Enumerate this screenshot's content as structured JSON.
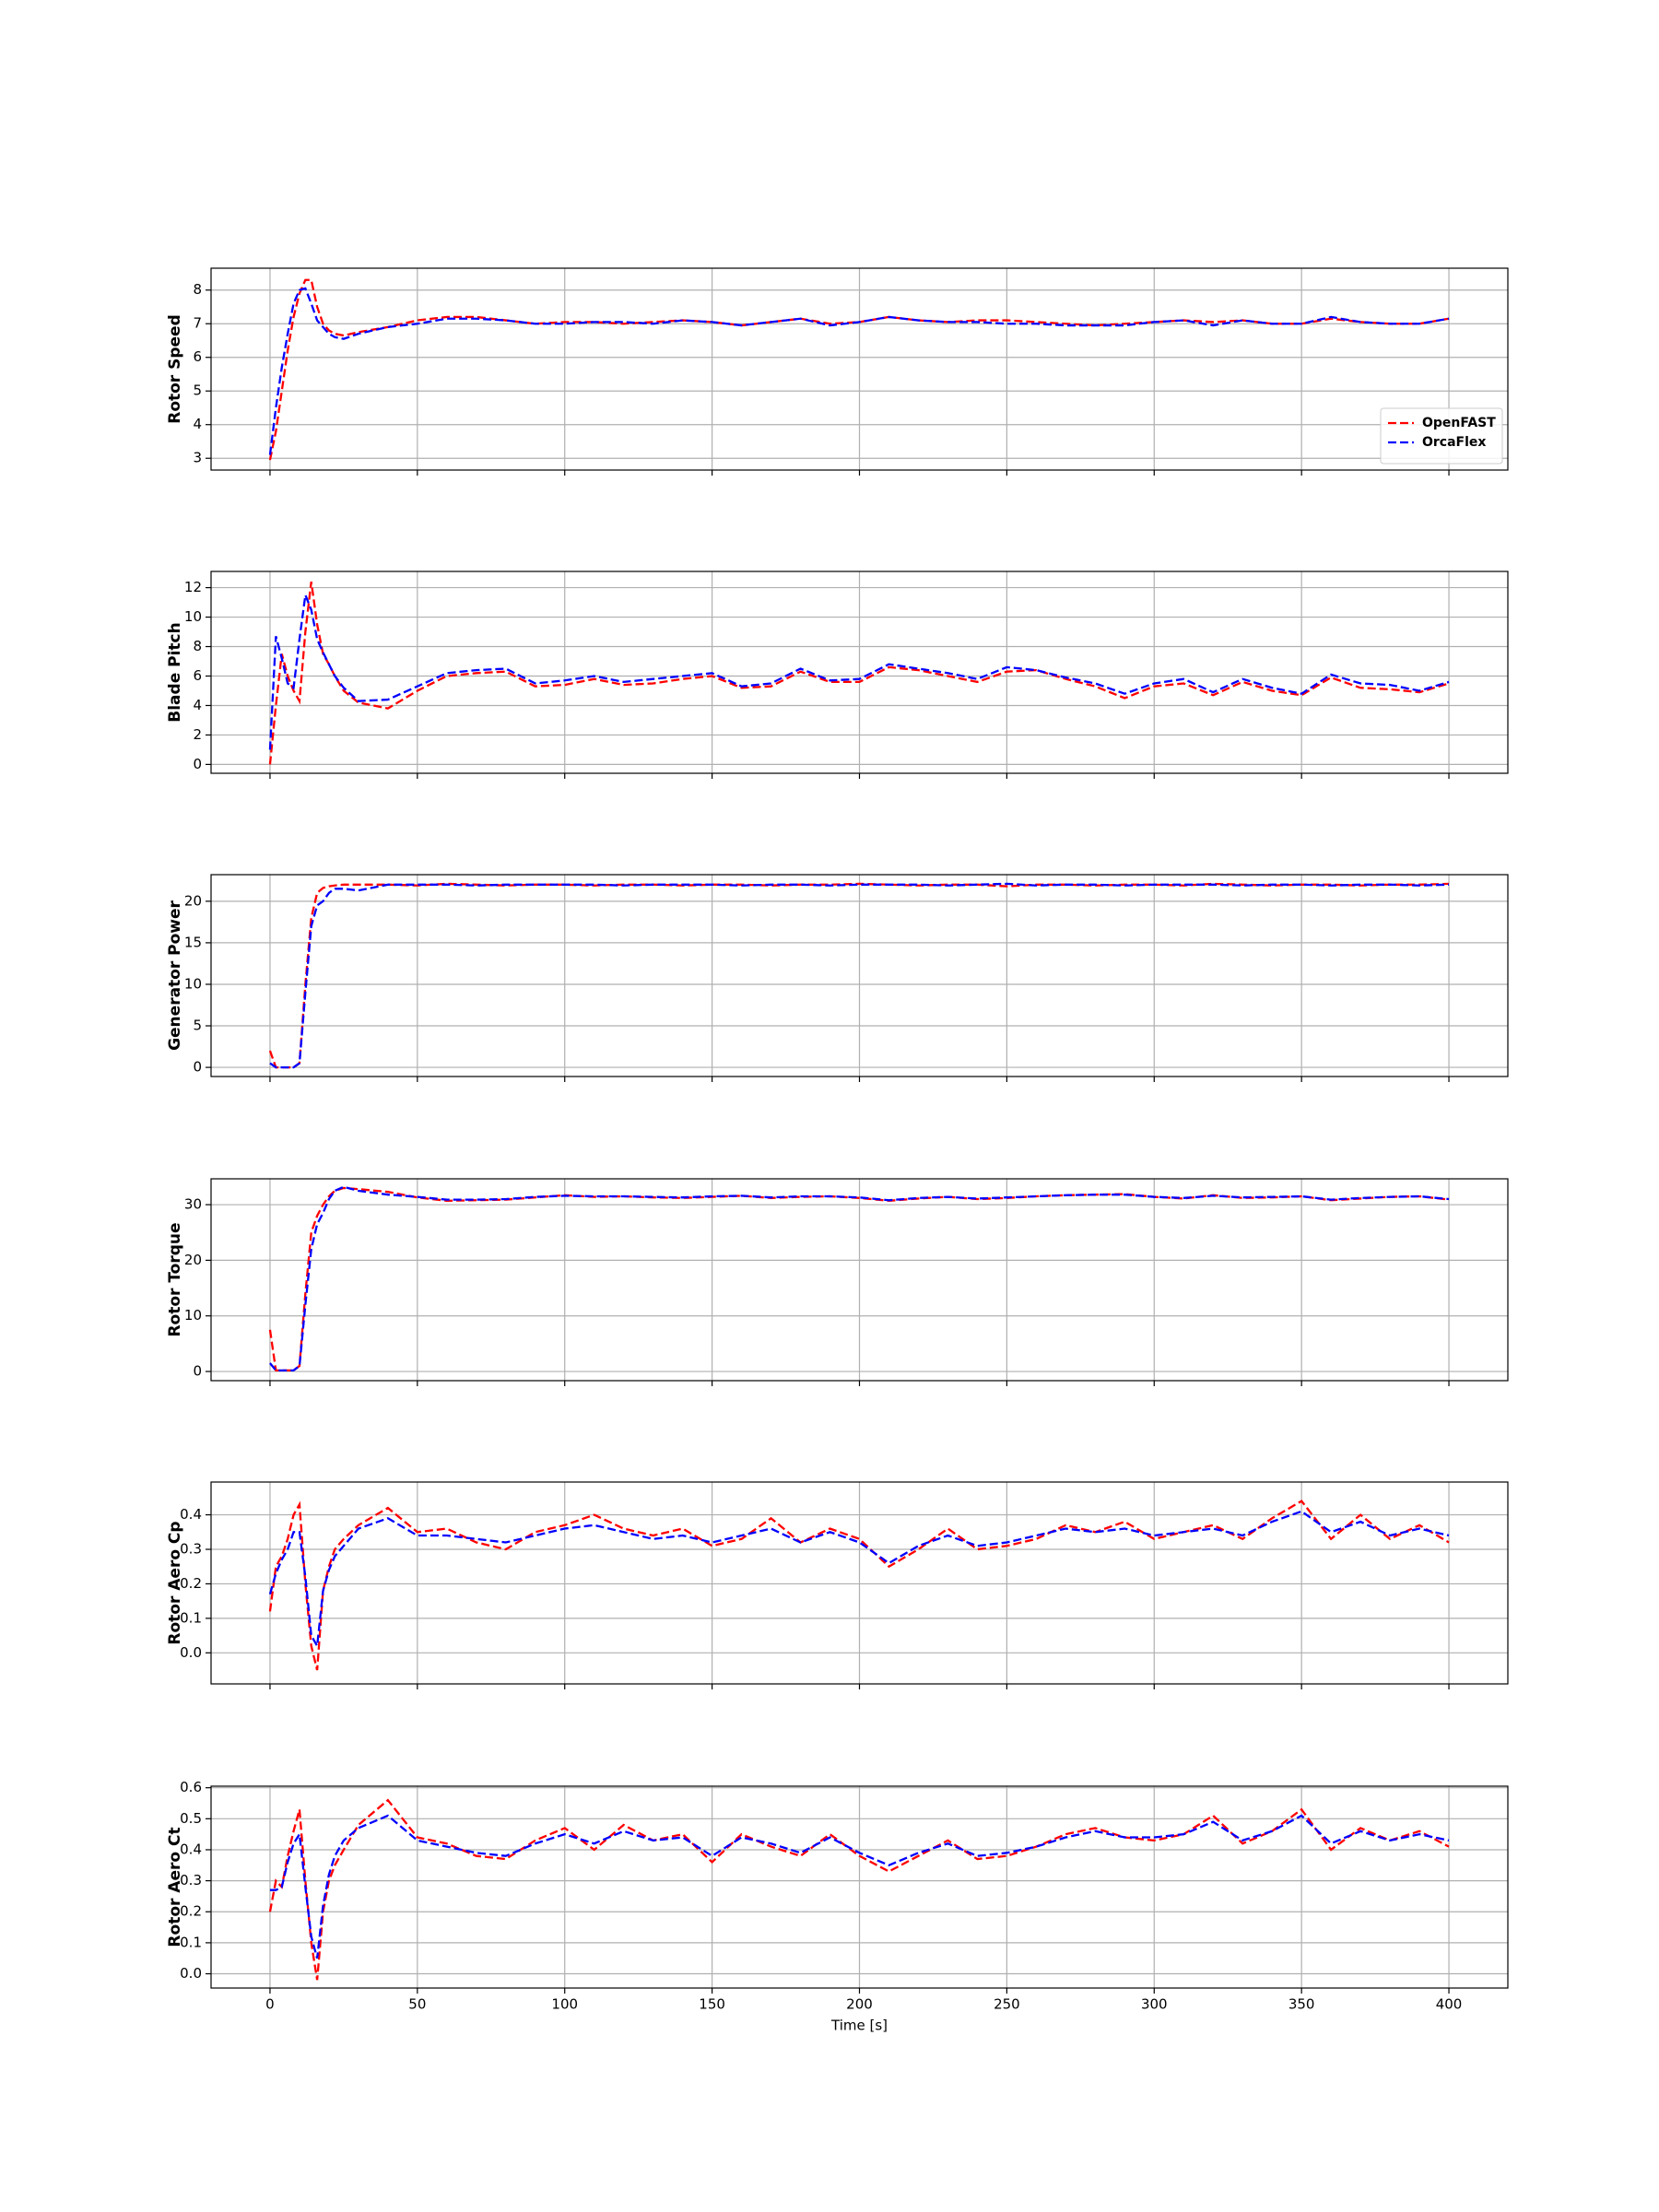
{
  "chart_data": [
    {
      "type": "line",
      "ylabel": "Rotor Speed",
      "grid": true,
      "legend": "lower right",
      "x": [
        0,
        2,
        4,
        6,
        8,
        10,
        12,
        14,
        16,
        18,
        20,
        22,
        25,
        30,
        40,
        50,
        60,
        70,
        80,
        90,
        100,
        110,
        120,
        130,
        140,
        150,
        160,
        170,
        180,
        190,
        200,
        210,
        220,
        230,
        240,
        250,
        260,
        270,
        280,
        290,
        300,
        310,
        320,
        330,
        340,
        350,
        360,
        370,
        380,
        390,
        400
      ],
      "xlim": [
        -20,
        420
      ],
      "xticks": [
        0,
        50,
        100,
        150,
        200,
        250,
        300,
        350,
        400
      ],
      "ylim": [
        2.65,
        8.65
      ],
      "yticks": [
        3,
        4,
        5,
        6,
        7,
        8
      ],
      "series": [
        {
          "name": "OpenFAST",
          "color": "#ff0000",
          "values": [
            2.95,
            3.8,
            5.0,
            6.2,
            7.2,
            7.9,
            8.3,
            8.3,
            7.5,
            7.0,
            6.8,
            6.7,
            6.65,
            6.75,
            6.9,
            7.1,
            7.2,
            7.2,
            7.1,
            7.0,
            7.05,
            7.05,
            7.0,
            7.05,
            7.1,
            7.05,
            6.95,
            7.05,
            7.15,
            7.0,
            7.05,
            7.2,
            7.1,
            7.05,
            7.1,
            7.1,
            7.05,
            7.0,
            6.95,
            7.0,
            7.05,
            7.1,
            7.05,
            7.1,
            7.0,
            7.0,
            7.15,
            7.05,
            7.0,
            7.0,
            7.15
          ]
        },
        {
          "name": "OrcaFlex",
          "color": "#0000ff",
          "values": [
            3.1,
            4.5,
            5.7,
            6.7,
            7.6,
            8.0,
            8.05,
            7.6,
            7.1,
            6.9,
            6.7,
            6.6,
            6.55,
            6.7,
            6.9,
            7.0,
            7.15,
            7.15,
            7.1,
            7.0,
            7.0,
            7.05,
            7.05,
            7.0,
            7.1,
            7.05,
            6.95,
            7.05,
            7.15,
            6.95,
            7.05,
            7.2,
            7.1,
            7.05,
            7.05,
            7.0,
            7.0,
            6.95,
            6.95,
            6.95,
            7.05,
            7.1,
            6.95,
            7.1,
            7.0,
            7.0,
            7.2,
            7.05,
            7.0,
            7.0,
            7.15
          ]
        }
      ]
    },
    {
      "type": "line",
      "ylabel": "Blade Pitch",
      "grid": true,
      "x": [
        0,
        2,
        4,
        6,
        8,
        10,
        12,
        14,
        16,
        18,
        20,
        22,
        25,
        30,
        40,
        50,
        60,
        70,
        80,
        90,
        100,
        110,
        120,
        130,
        140,
        150,
        160,
        170,
        180,
        190,
        200,
        210,
        220,
        230,
        240,
        250,
        260,
        270,
        280,
        290,
        300,
        310,
        320,
        330,
        340,
        350,
        360,
        370,
        380,
        390,
        400
      ],
      "xlim": [
        -20,
        420
      ],
      "xticks": [
        0,
        50,
        100,
        150,
        200,
        250,
        300,
        350,
        400
      ],
      "ylim": [
        -0.6,
        13.1
      ],
      "yticks": [
        0,
        2,
        4,
        6,
        8,
        10,
        12
      ],
      "series": [
        {
          "color": "#ff0000",
          "values": [
            0,
            4,
            7.5,
            6,
            5,
            4.3,
            9,
            12.4,
            9.5,
            7.5,
            6.8,
            6,
            5,
            4.2,
            3.8,
            5,
            6,
            6.2,
            6.3,
            5.3,
            5.4,
            5.8,
            5.4,
            5.5,
            5.8,
            6,
            5.2,
            5.3,
            6.3,
            5.6,
            5.6,
            6.6,
            6.4,
            6,
            5.6,
            6.3,
            6.4,
            5.8,
            5.3,
            4.5,
            5.3,
            5.5,
            4.7,
            5.6,
            5,
            4.7,
            5.9,
            5.2,
            5.1,
            4.9,
            5.5
          ]
        },
        {
          "color": "#0000ff",
          "values": [
            1,
            8.7,
            7.2,
            5.5,
            5.2,
            8.5,
            11.5,
            10.5,
            8.5,
            7.6,
            6.8,
            6,
            5.2,
            4.3,
            4.4,
            5.3,
            6.2,
            6.4,
            6.5,
            5.5,
            5.7,
            6,
            5.6,
            5.8,
            6,
            6.2,
            5.3,
            5.5,
            6.5,
            5.7,
            5.8,
            6.8,
            6.5,
            6.2,
            5.8,
            6.6,
            6.4,
            5.9,
            5.5,
            4.8,
            5.5,
            5.8,
            4.9,
            5.8,
            5.2,
            4.8,
            6.1,
            5.5,
            5.4,
            5,
            5.6
          ]
        }
      ]
    },
    {
      "type": "line",
      "ylabel": "Generator Power",
      "grid": true,
      "x": [
        0,
        2,
        4,
        6,
        8,
        10,
        12,
        14,
        16,
        18,
        20,
        22,
        25,
        30,
        40,
        50,
        60,
        70,
        80,
        90,
        100,
        110,
        120,
        130,
        140,
        150,
        160,
        170,
        180,
        190,
        200,
        210,
        220,
        230,
        240,
        250,
        260,
        270,
        280,
        290,
        300,
        310,
        320,
        330,
        340,
        350,
        360,
        370,
        380,
        390,
        400
      ],
      "xlim": [
        -20,
        420
      ],
      "xticks": [
        0,
        50,
        100,
        150,
        200,
        250,
        300,
        350,
        400
      ],
      "ylim": [
        -1.1,
        23.2
      ],
      "yticks": [
        0,
        5,
        10,
        15,
        20
      ],
      "series": [
        {
          "color": "#ff0000",
          "values": [
            2,
            0,
            0,
            0,
            0,
            0.5,
            10,
            18,
            21,
            21.6,
            21.8,
            21.9,
            22,
            22,
            22,
            21.9,
            22.1,
            22,
            21.9,
            22,
            22,
            21.9,
            22,
            22,
            21.9,
            22,
            22,
            21.9,
            22,
            22,
            22.1,
            22,
            21.9,
            22,
            22,
            21.8,
            22,
            22,
            21.9,
            22,
            22,
            21.9,
            22.1,
            22,
            21.9,
            22,
            22,
            21.9,
            22,
            22,
            22.1
          ]
        },
        {
          "color": "#0000ff",
          "values": [
            0.5,
            0,
            0,
            0,
            0,
            0.5,
            9,
            17,
            19.5,
            20,
            21,
            21.5,
            21.5,
            21.3,
            22,
            22,
            22,
            21.9,
            22,
            22,
            22,
            22,
            21.9,
            22,
            22,
            22,
            21.9,
            22,
            22,
            21.9,
            22,
            22,
            22,
            21.9,
            22,
            22.1,
            21.9,
            22,
            22,
            21.9,
            22,
            22,
            22,
            21.9,
            22,
            22,
            21.9,
            22,
            22,
            21.9,
            22
          ]
        }
      ]
    },
    {
      "type": "line",
      "ylabel": "Rotor Torque",
      "grid": true,
      "x": [
        0,
        2,
        4,
        6,
        8,
        10,
        12,
        14,
        16,
        18,
        20,
        22,
        25,
        30,
        40,
        50,
        60,
        70,
        80,
        90,
        100,
        110,
        120,
        130,
        140,
        150,
        160,
        170,
        180,
        190,
        200,
        210,
        220,
        230,
        240,
        250,
        260,
        270,
        280,
        290,
        300,
        310,
        320,
        330,
        340,
        350,
        360,
        370,
        380,
        390,
        400
      ],
      "xlim": [
        -20,
        420
      ],
      "xticks": [
        0,
        50,
        100,
        150,
        200,
        250,
        300,
        350,
        400
      ],
      "ylim": [
        -1.65,
        34.65
      ],
      "yticks": [
        0,
        10,
        20,
        30
      ],
      "series": [
        {
          "color": "#ff0000",
          "values": [
            7.5,
            0.2,
            0.2,
            0.2,
            0.2,
            1,
            14,
            25,
            28,
            30,
            31.5,
            32.5,
            33,
            32.8,
            32.3,
            31.3,
            30.7,
            30.8,
            30.9,
            31.3,
            31.7,
            31.4,
            31.5,
            31.3,
            31.2,
            31.4,
            31.6,
            31.2,
            31.4,
            31.5,
            31.2,
            30.7,
            31.1,
            31.4,
            31,
            31.2,
            31.5,
            31.7,
            31.8,
            31.9,
            31.4,
            31.1,
            31.7,
            31.2,
            31.3,
            31.5,
            30.8,
            31.1,
            31.4,
            31.5,
            30.9
          ]
        },
        {
          "color": "#0000ff",
          "values": [
            1.5,
            0.2,
            0.2,
            0.2,
            0.2,
            1,
            12,
            22,
            26.5,
            28.5,
            31,
            32.5,
            33.2,
            32.5,
            31.8,
            31.4,
            30.9,
            30.9,
            31,
            31.4,
            31.6,
            31.5,
            31.5,
            31.4,
            31.3,
            31.5,
            31.6,
            31.3,
            31.5,
            31.5,
            31.3,
            30.8,
            31.2,
            31.4,
            31.1,
            31.3,
            31.5,
            31.7,
            31.8,
            31.8,
            31.4,
            31.2,
            31.6,
            31.3,
            31.4,
            31.5,
            30.9,
            31.2,
            31.4,
            31.5,
            31
          ]
        }
      ]
    },
    {
      "type": "line",
      "ylabel": "Rotor Aero Cp",
      "grid": true,
      "x": [
        0,
        2,
        4,
        6,
        8,
        10,
        12,
        14,
        16,
        18,
        20,
        22,
        25,
        30,
        40,
        50,
        60,
        70,
        80,
        90,
        100,
        110,
        120,
        130,
        140,
        150,
        160,
        170,
        180,
        190,
        200,
        210,
        220,
        230,
        240,
        250,
        260,
        270,
        280,
        290,
        300,
        310,
        320,
        330,
        340,
        350,
        360,
        370,
        380,
        390,
        400
      ],
      "xlim": [
        -20,
        420
      ],
      "xticks": [
        0,
        50,
        100,
        150,
        200,
        250,
        300,
        350,
        400
      ],
      "ylim": [
        -0.09,
        0.495
      ],
      "yticks": [
        {
          "value": 0,
          "label": "0.0"
        },
        0.1,
        0.2,
        0.3,
        0.4
      ],
      "series": [
        {
          "color": "#ff0000",
          "values": [
            0.12,
            0.25,
            0.28,
            0.33,
            0.4,
            0.43,
            0.2,
            0.02,
            -0.05,
            0.18,
            0.25,
            0.3,
            0.33,
            0.37,
            0.42,
            0.35,
            0.36,
            0.32,
            0.3,
            0.35,
            0.37,
            0.4,
            0.36,
            0.34,
            0.36,
            0.31,
            0.33,
            0.39,
            0.32,
            0.36,
            0.33,
            0.25,
            0.3,
            0.36,
            0.3,
            0.31,
            0.33,
            0.37,
            0.35,
            0.38,
            0.33,
            0.35,
            0.37,
            0.33,
            0.39,
            0.44,
            0.33,
            0.4,
            0.33,
            0.37,
            0.32
          ]
        },
        {
          "color": "#0000ff",
          "values": [
            0.17,
            0.23,
            0.27,
            0.3,
            0.35,
            0.35,
            0.22,
            0.05,
            0.02,
            0.18,
            0.24,
            0.28,
            0.31,
            0.36,
            0.39,
            0.34,
            0.34,
            0.33,
            0.32,
            0.34,
            0.36,
            0.37,
            0.35,
            0.33,
            0.34,
            0.32,
            0.34,
            0.36,
            0.32,
            0.35,
            0.32,
            0.26,
            0.31,
            0.34,
            0.31,
            0.32,
            0.34,
            0.36,
            0.35,
            0.36,
            0.34,
            0.35,
            0.36,
            0.34,
            0.38,
            0.41,
            0.35,
            0.38,
            0.34,
            0.36,
            0.34
          ]
        }
      ]
    },
    {
      "type": "line",
      "ylabel": "Rotor Aero Ct",
      "xlabel": "Time [s]",
      "grid": true,
      "x": [
        0,
        2,
        4,
        6,
        8,
        10,
        12,
        14,
        16,
        18,
        20,
        22,
        25,
        30,
        40,
        50,
        60,
        70,
        80,
        90,
        100,
        110,
        120,
        130,
        140,
        150,
        160,
        170,
        180,
        190,
        200,
        210,
        220,
        230,
        240,
        250,
        260,
        270,
        280,
        290,
        300,
        310,
        320,
        330,
        340,
        350,
        360,
        370,
        380,
        390,
        400
      ],
      "xlim": [
        -20,
        420
      ],
      "xticks": [
        0,
        50,
        100,
        150,
        200,
        250,
        300,
        350,
        400
      ],
      "ylim": [
        -0.046,
        0.605
      ],
      "yticks": [
        {
          "value": 0,
          "label": "0.0"
        },
        0.1,
        0.2,
        0.3,
        0.4,
        0.5,
        0.6
      ],
      "series": [
        {
          "color": "#ff0000",
          "values": [
            0.2,
            0.3,
            0.28,
            0.38,
            0.46,
            0.53,
            0.3,
            0.1,
            -0.02,
            0.2,
            0.3,
            0.35,
            0.4,
            0.48,
            0.56,
            0.44,
            0.42,
            0.38,
            0.37,
            0.43,
            0.47,
            0.4,
            0.48,
            0.43,
            0.45,
            0.36,
            0.45,
            0.41,
            0.38,
            0.45,
            0.38,
            0.33,
            0.38,
            0.43,
            0.37,
            0.38,
            0.41,
            0.45,
            0.47,
            0.44,
            0.43,
            0.45,
            0.51,
            0.42,
            0.46,
            0.53,
            0.4,
            0.47,
            0.43,
            0.46,
            0.41
          ]
        },
        {
          "color": "#0000ff",
          "values": [
            0.27,
            0.27,
            0.28,
            0.36,
            0.42,
            0.45,
            0.28,
            0.12,
            0.05,
            0.22,
            0.32,
            0.38,
            0.43,
            0.47,
            0.51,
            0.43,
            0.41,
            0.39,
            0.38,
            0.42,
            0.45,
            0.42,
            0.46,
            0.43,
            0.44,
            0.38,
            0.44,
            0.42,
            0.39,
            0.44,
            0.39,
            0.35,
            0.39,
            0.42,
            0.38,
            0.39,
            0.41,
            0.44,
            0.46,
            0.44,
            0.44,
            0.45,
            0.49,
            0.43,
            0.46,
            0.51,
            0.42,
            0.46,
            0.43,
            0.45,
            0.43
          ]
        }
      ]
    }
  ]
}
